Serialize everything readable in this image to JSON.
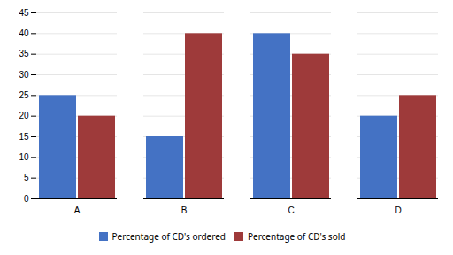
{
  "chart_data": {
    "type": "bar",
    "categories": [
      "A",
      "B",
      "C",
      "D"
    ],
    "series": [
      {
        "name": "Percentage of CD's ordered",
        "color": "#4472C4",
        "values": [
          25,
          15,
          40,
          20
        ]
      },
      {
        "name": "Percentage of CD's sold",
        "color": "#9E3A3A",
        "values": [
          20,
          40,
          35,
          25
        ]
      }
    ],
    "ylim": [
      0,
      45
    ],
    "yticks": [
      0,
      5,
      10,
      15,
      20,
      25,
      30,
      35,
      40,
      45
    ],
    "grid": true,
    "legend": "bottom"
  }
}
